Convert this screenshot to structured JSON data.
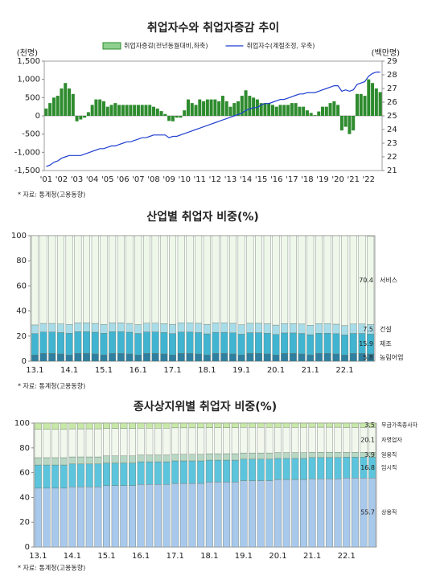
{
  "chart_data": [
    {
      "type": "bar",
      "title": "취업자수와 취업자증감 추이",
      "ylabel": "(천명)",
      "y2label": "(백만명)",
      "categories": [
        "'01",
        null,
        null,
        null,
        "'02",
        null,
        null,
        null,
        "'03",
        null,
        null,
        null,
        "'04",
        null,
        null,
        null,
        "'05",
        null,
        null,
        null,
        "'06",
        null,
        null,
        null,
        "'07",
        null,
        null,
        null,
        "'08",
        null,
        null,
        null,
        "'09",
        null,
        null,
        null,
        "'10",
        null,
        null,
        null,
        "'11",
        null,
        null,
        null,
        "'12",
        null,
        null,
        null,
        "'13",
        null,
        null,
        null,
        "'14",
        null,
        null,
        null,
        "'15",
        null,
        null,
        null,
        "'16",
        null,
        null,
        null,
        "'17",
        null,
        null,
        null,
        "'18",
        null,
        null,
        null,
        "'19",
        null,
        null,
        null,
        "'20",
        null,
        null,
        null,
        "'21",
        null,
        null,
        null,
        "'22",
        null,
        null,
        null
      ],
      "series": [
        {
          "name": "취업자증감(전년동월대비,좌축)",
          "type": "bar",
          "color": "#2e8b2e",
          "values": [
            200,
            350,
            500,
            550,
            750,
            900,
            750,
            600,
            -150,
            -100,
            -50,
            100,
            300,
            450,
            450,
            400,
            250,
            300,
            350,
            300,
            300,
            300,
            300,
            300,
            300,
            300,
            300,
            300,
            250,
            200,
            130,
            50,
            -140,
            -150,
            -50,
            -50,
            150,
            450,
            350,
            300,
            450,
            400,
            450,
            450,
            450,
            400,
            550,
            400,
            250,
            350,
            400,
            550,
            700,
            550,
            500,
            450,
            350,
            350,
            350,
            300,
            250,
            300,
            300,
            300,
            350,
            350,
            250,
            250,
            150,
            80,
            20,
            120,
            250,
            250,
            350,
            400,
            300,
            -400,
            -300,
            -500,
            -400,
            600,
            600,
            550,
            1000,
            900,
            750,
            650
          ]
        },
        {
          "name": "취업자수(계절조정, 우축)",
          "type": "line",
          "axis": "y2",
          "color": "#1f3fd0",
          "values": [
            21.3,
            21.4,
            21.6,
            21.7,
            21.9,
            22.0,
            22.1,
            22.1,
            22.1,
            22.1,
            22.2,
            22.3,
            22.4,
            22.5,
            22.6,
            22.6,
            22.7,
            22.8,
            22.8,
            22.9,
            23.0,
            23.1,
            23.1,
            23.2,
            23.3,
            23.4,
            23.4,
            23.5,
            23.6,
            23.6,
            23.6,
            23.6,
            23.4,
            23.5,
            23.5,
            23.6,
            23.7,
            23.8,
            23.9,
            24.0,
            24.1,
            24.2,
            24.3,
            24.4,
            24.5,
            24.6,
            24.7,
            24.8,
            24.9,
            25.0,
            25.1,
            25.2,
            25.4,
            25.5,
            25.6,
            25.6,
            25.8,
            25.9,
            25.9,
            26.0,
            26.1,
            26.2,
            26.2,
            26.3,
            26.4,
            26.5,
            26.6,
            26.6,
            26.7,
            26.7,
            26.7,
            26.8,
            26.9,
            27.0,
            27.1,
            27.2,
            27.2,
            26.8,
            26.9,
            26.8,
            26.9,
            27.3,
            27.4,
            27.5,
            27.9,
            28.1,
            28.2,
            28.2
          ]
        }
      ],
      "ylim": [
        -1500,
        1500
      ],
      "yticks": [
        {
          "value": -1500,
          "label": "-1,500"
        },
        {
          "value": -1000,
          "label": "-1,000"
        },
        -500,
        0,
        500,
        {
          "value": 1000,
          "label": "1,000"
        },
        {
          "value": 1500,
          "label": "1,500"
        }
      ],
      "y2lim": [
        21,
        29
      ],
      "y2ticks": [
        21,
        22,
        23,
        24,
        25,
        26,
        27,
        28,
        29
      ],
      "source": "* 자료: 통계청(고용동향)"
    },
    {
      "type": "stacked_bar",
      "title": "산업별 취업자 비중(%)",
      "categories": [
        "13.1",
        null,
        null,
        null,
        "14.1",
        null,
        null,
        null,
        "15.1",
        null,
        null,
        null,
        "16.1",
        null,
        null,
        null,
        "17.1",
        null,
        null,
        null,
        "18.1",
        null,
        null,
        null,
        "19.1",
        null,
        null,
        null,
        "20.1",
        null,
        null,
        null,
        "21.1",
        null,
        null,
        null,
        "22.1",
        null,
        null,
        null
      ],
      "series": [
        {
          "name": "농림어업",
          "color": "#2f7fa0",
          "values": [
            5.0,
            6.2,
            6.2,
            5.8,
            5.0,
            6.2,
            6.2,
            5.8,
            5.0,
            6.2,
            6.2,
            5.8,
            5.0,
            6.2,
            6.2,
            5.8,
            5.0,
            6.2,
            6.2,
            5.8,
            5.0,
            6.2,
            6.2,
            5.8,
            5.0,
            6.2,
            6.2,
            5.8,
            5.0,
            6.2,
            6.2,
            5.8,
            5.0,
            6.2,
            6.2,
            5.8,
            5.0,
            6.2,
            6.2,
            5.8
          ]
        },
        {
          "name": "제조",
          "color": "#40b4d0",
          "values": [
            17.0,
            17.0,
            17.0,
            17.0,
            17.3,
            17.3,
            17.3,
            17.3,
            17.3,
            17.3,
            17.3,
            17.3,
            17.1,
            17.1,
            17.1,
            17.1,
            17.0,
            17.0,
            17.0,
            17.0,
            16.8,
            16.8,
            16.8,
            16.8,
            16.5,
            16.5,
            16.5,
            16.5,
            16.3,
            16.3,
            16.3,
            16.3,
            16.1,
            16.1,
            16.1,
            16.1,
            15.9,
            15.9,
            15.9,
            15.9
          ]
        },
        {
          "name": "건설",
          "color": "#a8dce8",
          "values": [
            6.9,
            6.9,
            6.9,
            6.9,
            7.0,
            7.0,
            7.0,
            7.0,
            7.0,
            7.0,
            7.0,
            7.0,
            7.0,
            7.0,
            7.0,
            7.0,
            7.4,
            7.4,
            7.4,
            7.4,
            7.6,
            7.6,
            7.6,
            7.6,
            7.5,
            7.5,
            7.5,
            7.5,
            7.5,
            7.5,
            7.5,
            7.5,
            7.6,
            7.6,
            7.6,
            7.6,
            7.5,
            7.5,
            7.5,
            7.5
          ]
        },
        {
          "name": "서비스",
          "color": "#eef7ea",
          "values": [
            71.1,
            69.9,
            69.9,
            70.3,
            70.7,
            69.5,
            69.5,
            69.9,
            70.7,
            69.5,
            69.5,
            69.9,
            70.9,
            69.7,
            69.7,
            70.1,
            70.6,
            69.4,
            69.4,
            69.8,
            70.6,
            69.4,
            69.4,
            69.8,
            71.0,
            69.8,
            69.8,
            70.2,
            71.2,
            70.0,
            70.0,
            70.4,
            71.3,
            70.1,
            70.1,
            70.5,
            71.6,
            70.4,
            70.4,
            70.4
          ]
        }
      ],
      "ylim": [
        0,
        100
      ],
      "yticks": [
        0,
        20,
        40,
        60,
        80,
        100
      ],
      "source": "* 자료: 통계청(고용동향)"
    },
    {
      "type": "stacked_bar",
      "title": "종사상지위별 취업자 비중(%)",
      "categories": [
        "13.1",
        null,
        null,
        null,
        "14.1",
        null,
        null,
        null,
        "15.1",
        null,
        null,
        null,
        "16.1",
        null,
        null,
        null,
        "17.1",
        null,
        null,
        null,
        "18.1",
        null,
        null,
        null,
        "19.1",
        null,
        null,
        null,
        "20.1",
        null,
        null,
        null,
        "21.1",
        null,
        null,
        null,
        "22.1",
        null,
        null,
        null
      ],
      "series": [
        {
          "name": "상용직",
          "color": "#a8c8ec",
          "values": [
            47.5,
            47.5,
            47.5,
            47.5,
            48.5,
            48.5,
            48.5,
            48.5,
            49.5,
            49.5,
            49.5,
            49.5,
            50.5,
            50.5,
            50.5,
            50.5,
            51.3,
            51.3,
            51.3,
            51.3,
            52.5,
            52.5,
            52.5,
            52.5,
            53.5,
            53.5,
            53.5,
            53.5,
            54.5,
            54.5,
            54.5,
            54.5,
            55.0,
            55.0,
            55.0,
            55.0,
            55.7,
            55.7,
            55.7,
            55.7
          ]
        },
        {
          "name": "임시직",
          "color": "#5cc4dc",
          "values": [
            18.7,
            18.7,
            18.7,
            18.7,
            18.5,
            18.5,
            18.5,
            18.5,
            18.3,
            18.3,
            18.3,
            18.3,
            18.3,
            18.3,
            18.3,
            18.3,
            18.2,
            18.2,
            18.2,
            18.2,
            17.6,
            17.6,
            17.6,
            17.6,
            17.4,
            17.4,
            17.4,
            17.4,
            17.0,
            17.0,
            17.0,
            17.0,
            17.2,
            17.2,
            17.2,
            17.2,
            16.8,
            16.8,
            16.8,
            16.8
          ]
        },
        {
          "name": "일용직",
          "color": "#b8d8c4",
          "values": [
            5.9,
            5.9,
            5.9,
            5.9,
            5.7,
            5.7,
            5.7,
            5.7,
            5.7,
            5.7,
            5.7,
            5.7,
            5.5,
            5.5,
            5.5,
            5.5,
            5.3,
            5.3,
            5.3,
            5.3,
            5.2,
            5.2,
            5.2,
            5.2,
            5.0,
            5.0,
            5.0,
            5.0,
            4.7,
            4.7,
            4.7,
            4.7,
            4.3,
            4.3,
            4.3,
            4.3,
            3.9,
            3.9,
            3.9,
            3.9
          ]
        },
        {
          "name": "자영업자",
          "color": "#f2f8ee",
          "values": [
            22.9,
            22.9,
            22.9,
            22.9,
            22.7,
            22.7,
            22.7,
            22.7,
            22.2,
            22.2,
            22.2,
            22.2,
            21.6,
            21.6,
            21.6,
            21.6,
            21.4,
            21.4,
            21.4,
            21.4,
            21.0,
            21.0,
            21.0,
            21.0,
            20.7,
            20.7,
            20.7,
            20.7,
            20.4,
            20.4,
            20.4,
            20.4,
            20.2,
            20.2,
            20.2,
            20.2,
            20.1,
            20.1,
            20.1,
            20.1
          ]
        },
        {
          "name": "무급가족종사자",
          "color": "#c8e8a8",
          "values": [
            5.0,
            5.0,
            5.0,
            5.0,
            4.6,
            4.6,
            4.6,
            4.6,
            4.3,
            4.3,
            4.3,
            4.3,
            4.1,
            4.1,
            4.1,
            4.1,
            3.8,
            3.8,
            3.8,
            3.8,
            3.7,
            3.7,
            3.7,
            3.7,
            3.4,
            3.4,
            3.4,
            3.4,
            3.4,
            3.4,
            3.4,
            3.4,
            3.3,
            3.3,
            3.3,
            3.3,
            3.5,
            3.5,
            3.5,
            3.5
          ]
        }
      ],
      "ylim": [
        0,
        100
      ],
      "yticks": [
        0,
        20,
        40,
        60,
        80,
        100
      ],
      "source": "* 자료: 통계청(고용동향)"
    }
  ]
}
